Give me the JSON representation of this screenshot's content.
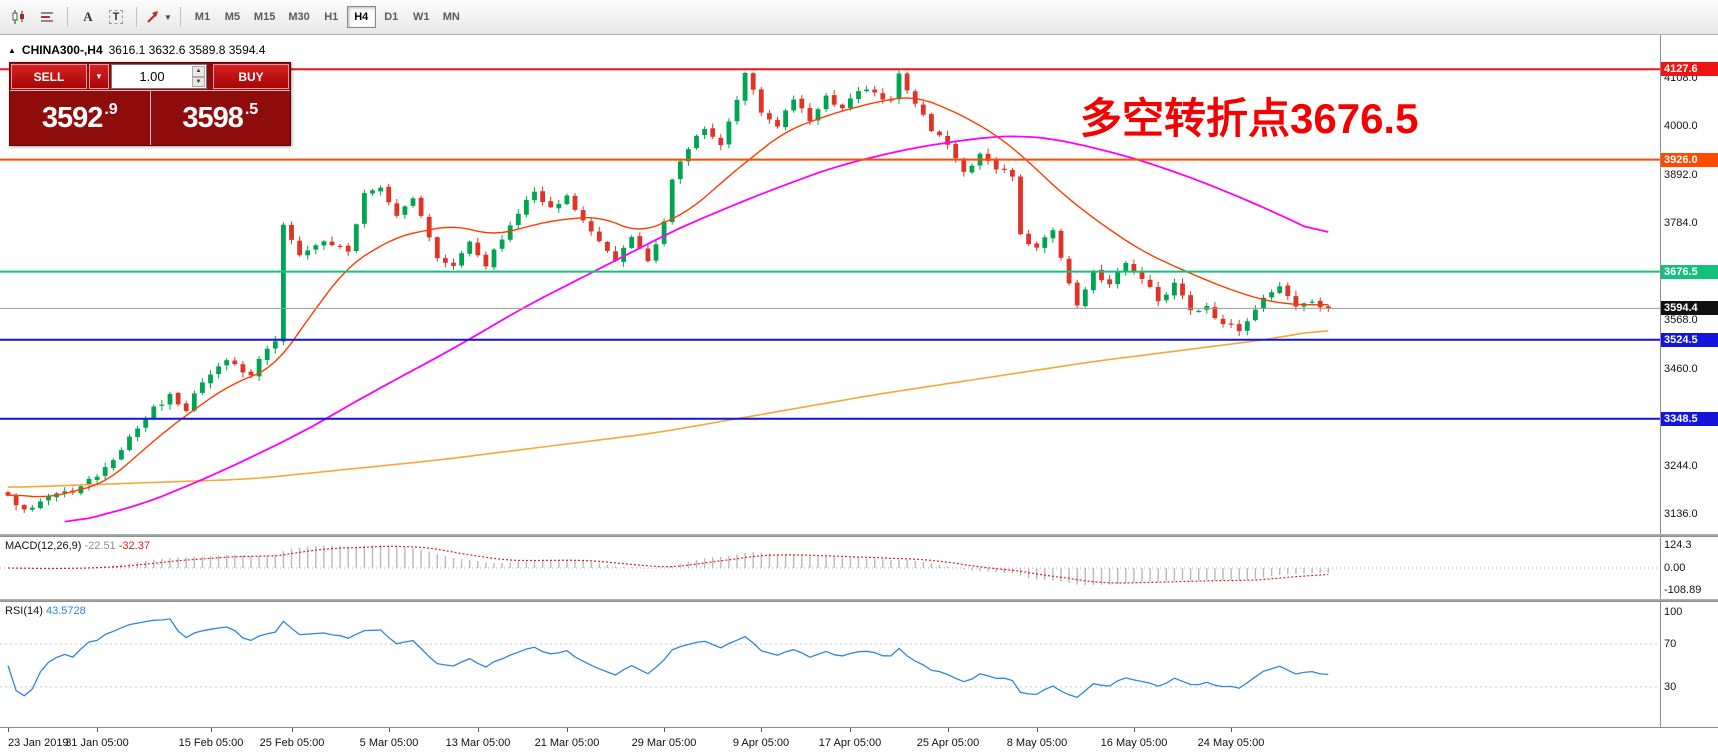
{
  "toolbar": {
    "icon_a": "A",
    "icon_t": "T",
    "timeframes": [
      "M1",
      "M5",
      "M15",
      "M30",
      "H1",
      "H4",
      "D1",
      "W1",
      "MN"
    ],
    "active_timeframe": "H4"
  },
  "trade_panel": {
    "sell_label": "SELL",
    "buy_label": "BUY",
    "volume": "1.00",
    "bid_main": "3592",
    "bid_pip": ".9",
    "ask_main": "3598",
    "ask_pip": ".5"
  },
  "annotation": {
    "text": "多空转折点3676.5",
    "color": "#f40000"
  },
  "colors": {
    "up": "#00a551",
    "down": "#e03428",
    "ma_fast": "#ff3c00",
    "ma_mid": "#ff00ff",
    "ma_slow": "#f2a93b",
    "macd_hist": "#b9b9b9",
    "macd_signal": "#e02020",
    "rsi": "#2e86de",
    "current_line": "#9a9a9a"
  },
  "chart_data": {
    "type": "candlestick",
    "header_symbol": "CHINA300-,H4",
    "header_ohlc": "3616.1 3632.6 3589.8 3594.4",
    "symbol": "CHINA300-",
    "timeframe": "H4",
    "bar_count": 164,
    "y_range": [
      3087,
      4202
    ],
    "price_ticks": [
      {
        "label": "4108.0",
        "price": 4108.0
      },
      {
        "label": "4000.0",
        "price": 4000.0
      },
      {
        "label": "3892.0",
        "price": 3892.0
      },
      {
        "label": "3784.0",
        "price": 3784.0
      },
      {
        "label": "3568.0",
        "price": 3568.0
      },
      {
        "label": "3460.0",
        "price": 3460.0
      },
      {
        "label": "3244.0",
        "price": 3244.0
      },
      {
        "label": "3136.0",
        "price": 3136.0
      }
    ],
    "levels": [
      {
        "label": "4127.6",
        "price": 4127.6,
        "color": "#f01515"
      },
      {
        "label": "3926.0",
        "price": 3926.0,
        "color": "#ff4a00"
      },
      {
        "label": "3676.5",
        "price": 3676.5,
        "color": "#15c07e"
      },
      {
        "label": "3524.5",
        "price": 3524.5,
        "color": "#1414dc"
      },
      {
        "label": "3348.5",
        "price": 3348.5,
        "color": "#1414dc"
      }
    ],
    "current_price": {
      "label": "3594.4",
      "price": 3594.4
    },
    "close_anchors": [
      [
        0,
        3175
      ],
      [
        2,
        3148
      ],
      [
        4,
        3165
      ],
      [
        8,
        3185
      ],
      [
        12,
        3240
      ],
      [
        17,
        3350
      ],
      [
        20,
        3405
      ],
      [
        22,
        3365
      ],
      [
        24,
        3430
      ],
      [
        27,
        3480
      ],
      [
        30,
        3445
      ],
      [
        32,
        3505
      ],
      [
        33,
        3520
      ],
      [
        34,
        3780
      ],
      [
        36,
        3715
      ],
      [
        39,
        3745
      ],
      [
        42,
        3720
      ],
      [
        44,
        3850
      ],
      [
        46,
        3865
      ],
      [
        48,
        3800
      ],
      [
        50,
        3840
      ],
      [
        53,
        3705
      ],
      [
        55,
        3690
      ],
      [
        57,
        3745
      ],
      [
        59,
        3690
      ],
      [
        62,
        3780
      ],
      [
        65,
        3855
      ],
      [
        67,
        3820
      ],
      [
        69,
        3845
      ],
      [
        71,
        3790
      ],
      [
        73,
        3745
      ],
      [
        75,
        3700
      ],
      [
        77,
        3755
      ],
      [
        79,
        3700
      ],
      [
        81,
        3790
      ],
      [
        82,
        3880
      ],
      [
        84,
        3950
      ],
      [
        86,
        3995
      ],
      [
        88,
        3960
      ],
      [
        90,
        4060
      ],
      [
        91,
        4120
      ],
      [
        93,
        4030
      ],
      [
        95,
        4000
      ],
      [
        97,
        4060
      ],
      [
        99,
        4010
      ],
      [
        101,
        4070
      ],
      [
        103,
        4040
      ],
      [
        105,
        4080
      ],
      [
        107,
        4075
      ],
      [
        109,
        4060
      ],
      [
        110,
        4120
      ],
      [
        112,
        4050
      ],
      [
        114,
        3990
      ],
      [
        116,
        3960
      ],
      [
        118,
        3900
      ],
      [
        120,
        3940
      ],
      [
        122,
        3905
      ],
      [
        124,
        3890
      ],
      [
        125,
        3760
      ],
      [
        127,
        3730
      ],
      [
        129,
        3770
      ],
      [
        131,
        3650
      ],
      [
        132,
        3600
      ],
      [
        134,
        3680
      ],
      [
        136,
        3650
      ],
      [
        138,
        3695
      ],
      [
        140,
        3660
      ],
      [
        142,
        3610
      ],
      [
        144,
        3650
      ],
      [
        146,
        3590
      ],
      [
        148,
        3600
      ],
      [
        150,
        3560
      ],
      [
        152,
        3545
      ],
      [
        155,
        3620
      ],
      [
        157,
        3645
      ],
      [
        159,
        3600
      ],
      [
        161,
        3610
      ],
      [
        163,
        3594.4
      ]
    ],
    "ma_fast_anchors": [
      [
        0,
        3180
      ],
      [
        5,
        3172
      ],
      [
        12,
        3205
      ],
      [
        20,
        3330
      ],
      [
        27,
        3420
      ],
      [
        33,
        3465
      ],
      [
        37,
        3570
      ],
      [
        42,
        3690
      ],
      [
        48,
        3755
      ],
      [
        55,
        3780
      ],
      [
        60,
        3757
      ],
      [
        67,
        3790
      ],
      [
        73,
        3800
      ],
      [
        78,
        3762
      ],
      [
        84,
        3810
      ],
      [
        90,
        3905
      ],
      [
        96,
        3990
      ],
      [
        102,
        4030
      ],
      [
        108,
        4058
      ],
      [
        112,
        4068
      ],
      [
        117,
        4032
      ],
      [
        122,
        3982
      ],
      [
        126,
        3922
      ],
      [
        130,
        3852
      ],
      [
        135,
        3782
      ],
      [
        140,
        3722
      ],
      [
        145,
        3680
      ],
      [
        150,
        3642
      ],
      [
        155,
        3612
      ],
      [
        159,
        3602
      ],
      [
        163,
        3603
      ]
    ],
    "ma_mid_anchors": [
      [
        7,
        3112
      ],
      [
        17,
        3160
      ],
      [
        26,
        3228
      ],
      [
        36,
        3315
      ],
      [
        45,
        3408
      ],
      [
        55,
        3505
      ],
      [
        64,
        3600
      ],
      [
        74,
        3692
      ],
      [
        83,
        3775
      ],
      [
        93,
        3850
      ],
      [
        102,
        3910
      ],
      [
        111,
        3950
      ],
      [
        120,
        3975
      ],
      [
        125,
        3980
      ],
      [
        130,
        3970
      ],
      [
        139,
        3930
      ],
      [
        147,
        3880
      ],
      [
        155,
        3820
      ],
      [
        163,
        3752
      ]
    ],
    "ma_slow_anchors": [
      [
        0,
        3195
      ],
      [
        30,
        3214
      ],
      [
        53,
        3256
      ],
      [
        80,
        3317
      ],
      [
        107,
        3402
      ],
      [
        134,
        3476
      ],
      [
        155,
        3524
      ],
      [
        163,
        3549
      ]
    ],
    "time_labels": [
      {
        "text": "23 Jan 2019",
        "bar": 0
      },
      {
        "text": "31 Jan 05:00",
        "bar": 11
      },
      {
        "text": "15 Feb 05:00",
        "bar": 25
      },
      {
        "text": "25 Feb 05:00",
        "bar": 35
      },
      {
        "text": "5 Mar 05:00",
        "bar": 47
      },
      {
        "text": "13 Mar 05:00",
        "bar": 58
      },
      {
        "text": "21 Mar 05:00",
        "bar": 69
      },
      {
        "text": "29 Mar 05:00",
        "bar": 81
      },
      {
        "text": "9 Apr 05:00",
        "bar": 93
      },
      {
        "text": "17 Apr 05:00",
        "bar": 104
      },
      {
        "text": "25 Apr 05:00",
        "bar": 116
      },
      {
        "text": "8 May 05:00",
        "bar": 127
      },
      {
        "text": "16 May 05:00",
        "bar": 139
      },
      {
        "text": "24 May 05:00",
        "bar": 151
      }
    ],
    "macd": {
      "params": "MACD(12,26,9)",
      "value_main": "-22.51",
      "value_signal": "-32.37",
      "axis_labels": [
        "124.3",
        "0.00",
        "-108.89"
      ]
    },
    "rsi": {
      "params": "RSI(14)",
      "value": "43.5728",
      "axis_labels": [
        "100",
        "70",
        "30"
      ],
      "level_lines": [
        70,
        30
      ]
    }
  }
}
